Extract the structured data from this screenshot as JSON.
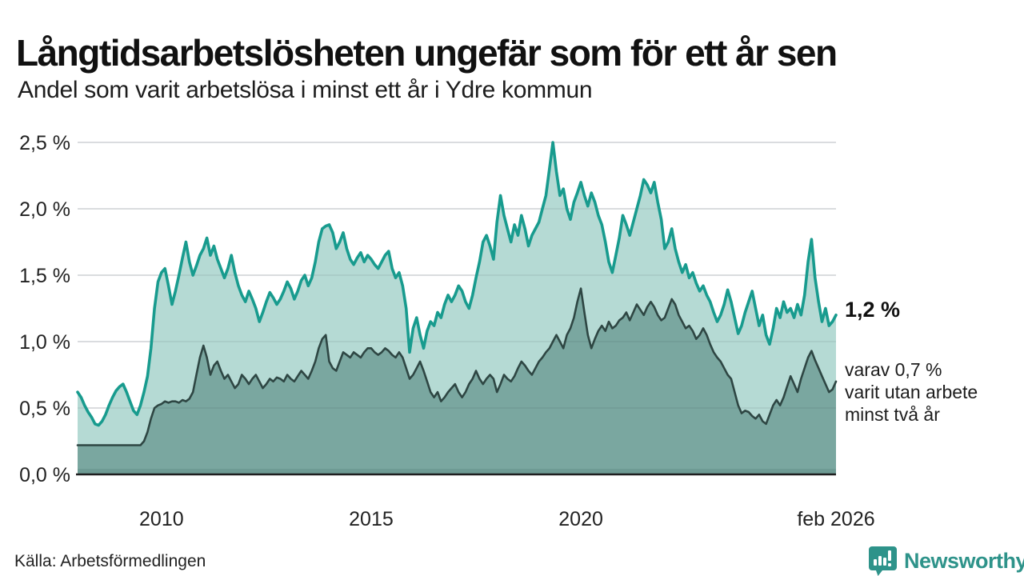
{
  "header": {
    "title": "Långtidsarbetslösheten ungefär som för ett år sen",
    "subtitle": "Andel som varit arbetslösa i minst ett år i Ydre kommun"
  },
  "annotations": {
    "end_value": "1,2 %",
    "secondary_line1": "varav 0,7 %",
    "secondary_line2": "varit utan arbete",
    "secondary_line3": "minst två år"
  },
  "footer": {
    "source": "Källa: Arbetsförmedlingen",
    "brand": "Newsworthy",
    "brand_icon": "newsworthy-chart-bubble-icon"
  },
  "colors": {
    "teal_line": "#189b8e",
    "light_fill": "#b5dad4",
    "dark_line": "#2e4643",
    "dark_fill": "#7aa7a0",
    "deep_strip": "#6e9b94",
    "grid": "#e3e4e7",
    "grid_overlay": "rgba(40,60,60,0.10)",
    "axis": "#1f1f1f",
    "tick_text": "#222222",
    "brand_teal": "#2e938a"
  },
  "chart_data": {
    "type": "area",
    "title": "Långtidsarbetslösheten ungefär som för ett år sen",
    "subtitle": "Andel som varit arbetslösa i minst ett år i Ydre kommun",
    "unit": "%",
    "frequency": "monthly",
    "x_start": "2008-01",
    "x_end": "2026-02",
    "ylim": [
      0,
      2.5
    ],
    "grid": true,
    "legend_position": "right-annotations",
    "y_ticks": [
      {
        "value": 0.0,
        "label": "0,0 %"
      },
      {
        "value": 0.5,
        "label": "0,5 %"
      },
      {
        "value": 1.0,
        "label": "1,0 %"
      },
      {
        "value": 1.5,
        "label": "1,5 %"
      },
      {
        "value": 2.0,
        "label": "2,0 %"
      },
      {
        "value": 2.5,
        "label": "2,5 %"
      }
    ],
    "x_ticks": [
      {
        "month_index": 24,
        "label": "2010"
      },
      {
        "month_index": 84,
        "label": "2015"
      },
      {
        "month_index": 144,
        "label": "2020"
      },
      {
        "month_index": 217,
        "label": "feb 2026"
      }
    ],
    "series": [
      {
        "name": "Andel arbetslösa minst ett år",
        "end_label": "1,2 %",
        "line_color": "#189b8e",
        "fill_color": "#b5dad4",
        "values": [
          0.62,
          0.58,
          0.52,
          0.47,
          0.43,
          0.38,
          0.37,
          0.4,
          0.45,
          0.52,
          0.58,
          0.63,
          0.66,
          0.68,
          0.62,
          0.55,
          0.48,
          0.45,
          0.52,
          0.62,
          0.74,
          0.95,
          1.25,
          1.45,
          1.52,
          1.55,
          1.42,
          1.28,
          1.38,
          1.5,
          1.63,
          1.75,
          1.6,
          1.5,
          1.57,
          1.65,
          1.7,
          1.78,
          1.65,
          1.72,
          1.62,
          1.55,
          1.48,
          1.55,
          1.65,
          1.52,
          1.42,
          1.35,
          1.3,
          1.38,
          1.32,
          1.25,
          1.15,
          1.22,
          1.3,
          1.37,
          1.33,
          1.28,
          1.32,
          1.38,
          1.45,
          1.4,
          1.32,
          1.38,
          1.46,
          1.5,
          1.42,
          1.48,
          1.6,
          1.75,
          1.85,
          1.87,
          1.88,
          1.82,
          1.7,
          1.75,
          1.82,
          1.7,
          1.62,
          1.58,
          1.63,
          1.67,
          1.6,
          1.65,
          1.62,
          1.58,
          1.55,
          1.6,
          1.65,
          1.68,
          1.55,
          1.48,
          1.52,
          1.42,
          1.25,
          0.92,
          1.1,
          1.18,
          1.05,
          0.95,
          1.08,
          1.15,
          1.12,
          1.22,
          1.18,
          1.28,
          1.35,
          1.3,
          1.35,
          1.42,
          1.38,
          1.3,
          1.25,
          1.35,
          1.48,
          1.6,
          1.75,
          1.8,
          1.72,
          1.62,
          1.9,
          2.1,
          1.95,
          1.85,
          1.75,
          1.88,
          1.8,
          1.95,
          1.85,
          1.72,
          1.8,
          1.85,
          1.9,
          2.0,
          2.1,
          2.3,
          2.5,
          2.28,
          2.1,
          2.15,
          2.0,
          1.92,
          2.05,
          2.12,
          2.2,
          2.1,
          2.02,
          2.12,
          2.05,
          1.95,
          1.88,
          1.75,
          1.6,
          1.52,
          1.65,
          1.78,
          1.95,
          1.88,
          1.8,
          1.9,
          2.0,
          2.1,
          2.22,
          2.18,
          2.12,
          2.2,
          2.05,
          1.92,
          1.7,
          1.75,
          1.85,
          1.7,
          1.6,
          1.52,
          1.58,
          1.48,
          1.52,
          1.44,
          1.38,
          1.42,
          1.35,
          1.3,
          1.22,
          1.15,
          1.2,
          1.28,
          1.39,
          1.3,
          1.18,
          1.06,
          1.12,
          1.22,
          1.3,
          1.38,
          1.25,
          1.12,
          1.2,
          1.05,
          0.98,
          1.1,
          1.25,
          1.18,
          1.3,
          1.22,
          1.25,
          1.18,
          1.28,
          1.2,
          1.35,
          1.6,
          1.77,
          1.48,
          1.3,
          1.15,
          1.25,
          1.12,
          1.15,
          1.2
        ]
      },
      {
        "name": "varav utan arbete minst två år",
        "end_label": "varav 0,7 % varit utan arbete minst två år",
        "line_color": "#2e4643",
        "fill_color": "#7aa7a0",
        "values": [
          0.22,
          0.22,
          0.22,
          0.22,
          0.22,
          0.22,
          0.22,
          0.22,
          0.22,
          0.22,
          0.22,
          0.22,
          0.22,
          0.22,
          0.22,
          0.22,
          0.22,
          0.22,
          0.22,
          0.25,
          0.32,
          0.42,
          0.5,
          0.52,
          0.53,
          0.55,
          0.54,
          0.55,
          0.55,
          0.54,
          0.56,
          0.55,
          0.57,
          0.62,
          0.75,
          0.88,
          0.97,
          0.88,
          0.75,
          0.82,
          0.85,
          0.78,
          0.72,
          0.75,
          0.7,
          0.65,
          0.68,
          0.75,
          0.72,
          0.68,
          0.72,
          0.75,
          0.7,
          0.65,
          0.68,
          0.72,
          0.7,
          0.73,
          0.72,
          0.7,
          0.75,
          0.72,
          0.7,
          0.74,
          0.78,
          0.75,
          0.72,
          0.78,
          0.85,
          0.95,
          1.02,
          1.05,
          0.85,
          0.8,
          0.78,
          0.85,
          0.92,
          0.9,
          0.88,
          0.92,
          0.9,
          0.88,
          0.92,
          0.95,
          0.95,
          0.92,
          0.9,
          0.92,
          0.95,
          0.93,
          0.9,
          0.88,
          0.92,
          0.88,
          0.8,
          0.72,
          0.75,
          0.8,
          0.85,
          0.78,
          0.7,
          0.62,
          0.58,
          0.62,
          0.55,
          0.58,
          0.62,
          0.65,
          0.68,
          0.62,
          0.58,
          0.62,
          0.68,
          0.72,
          0.78,
          0.72,
          0.68,
          0.72,
          0.75,
          0.72,
          0.62,
          0.68,
          0.75,
          0.72,
          0.7,
          0.74,
          0.8,
          0.85,
          0.82,
          0.78,
          0.75,
          0.8,
          0.85,
          0.88,
          0.92,
          0.95,
          1.0,
          1.05,
          1.0,
          0.95,
          1.05,
          1.1,
          1.18,
          1.3,
          1.4,
          1.22,
          1.05,
          0.95,
          1.02,
          1.08,
          1.12,
          1.08,
          1.15,
          1.1,
          1.12,
          1.16,
          1.18,
          1.22,
          1.16,
          1.22,
          1.28,
          1.24,
          1.2,
          1.26,
          1.3,
          1.26,
          1.2,
          1.16,
          1.18,
          1.25,
          1.32,
          1.28,
          1.2,
          1.15,
          1.1,
          1.12,
          1.08,
          1.02,
          1.05,
          1.1,
          1.05,
          0.98,
          0.92,
          0.88,
          0.85,
          0.8,
          0.75,
          0.72,
          0.62,
          0.52,
          0.46,
          0.48,
          0.47,
          0.44,
          0.42,
          0.45,
          0.4,
          0.38,
          0.45,
          0.52,
          0.56,
          0.52,
          0.58,
          0.66,
          0.74,
          0.68,
          0.62,
          0.72,
          0.8,
          0.88,
          0.93,
          0.86,
          0.8,
          0.74,
          0.68,
          0.62,
          0.64,
          0.7
        ]
      }
    ]
  }
}
